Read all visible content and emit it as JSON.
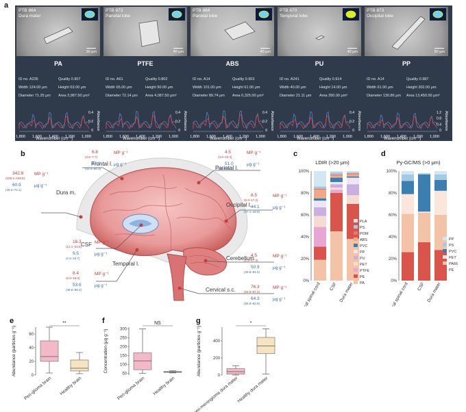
{
  "panels": {
    "a": "a",
    "b": "b",
    "c": "c",
    "d": "d",
    "e": "e",
    "f": "f",
    "g": "g"
  },
  "panel_a": {
    "tiles": [
      {
        "header": "PTB 864",
        "tissue": "Dura mater",
        "scale": "30 μm",
        "polymer": "PA",
        "id": "ID no. A235",
        "quality": "Quality 0.907",
        "width": "Width 124.00 μm",
        "height": "Height 63.00 μm",
        "diameter": "Diameter 71.25 μm",
        "area": "Area 3,987.50 μm²"
      },
      {
        "header": "PTB 873",
        "tissue": "Parietal lobe",
        "scale": "40 μm",
        "polymer": "PTFE",
        "id": "ID no. A61",
        "quality": "Quality 0.802",
        "width": "Width 65.00 μm",
        "height": "Height 90.00 μm",
        "diameter": "Diameter 72.14 μm",
        "area": "Area 4,087.50 μm²"
      },
      {
        "header": "PTB 864",
        "tissue": "Parietal lobe",
        "scale": "40 μm",
        "polymer": "ABS",
        "id": "ID no. A14",
        "quality": "Quality 0.903",
        "width": "Width 101.00 μm",
        "height": "Height 61.00 μm",
        "diameter": "Diameter 89.74 μm",
        "area": "Area 6,325.00 μm²"
      },
      {
        "header": "PTB 870",
        "tissue": "Temporal lobe",
        "scale": "40 μm",
        "polymer": "PU",
        "id": "ID no. A241",
        "quality": "Quality 0.914",
        "width": "Width 40.00 μm",
        "height": "Height 14.00 μm",
        "diameter": "Diameter 21.11 μm",
        "area": "Area 350.00 μm²"
      },
      {
        "header": "PTB 873",
        "tissue": "Occipital lobe",
        "scale": "50 μm",
        "polymer": "PP",
        "id": "ID no. A14",
        "quality": "Quality 0.987",
        "width": "Width 61.00 μm",
        "height": "Height 302.00 μm",
        "diameter": "Diameter 130.86 μm",
        "area": "Area 13,450.00 μm²"
      }
    ],
    "spectrum_axis_title": "Wavenumber (cm⁻¹)",
    "spectrum_ylabel": "Absorbance",
    "spectrum_ticks": [
      "1,800",
      "1,600",
      "1,400",
      "1,200",
      "1,000"
    ],
    "spectrum_yticks_a": [
      "0.4",
      "0.2",
      "0"
    ],
    "spectrum_yticks_b": [
      "1.2",
      "0.8",
      "0.4",
      "0"
    ],
    "colors": {
      "measured": "#e0474c",
      "reference": "#4f86c6"
    }
  },
  "panel_b": {
    "unit_mp": "MP g⁻¹",
    "unit_ug": "μg g⁻¹",
    "regions": [
      {
        "name": "Frontal l.",
        "mp": "6.8",
        "mp_range": "(4.8–7.7)",
        "ug": "47.9",
        "ug_range": "(43.4–50.3)"
      },
      {
        "name": "Parietal l.",
        "mp": "4.5",
        "mp_range": "(3.6–23.3)",
        "ug": "51.0",
        "ug_range": "(50.6–58.2)"
      },
      {
        "name": "Dura m.",
        "mp": "342.8",
        "mp_range": "(228.1–449.5)",
        "ug": "60.9",
        "ug_range": "(49.2–72.1)"
      },
      {
        "name": "Occipital l.",
        "mp": "8.5",
        "mp_range": "(6.3–17.2)",
        "ug": "44.1",
        "ug_range": "(37.1–45.9)"
      },
      {
        "name": "CSF",
        "mp": "16.3",
        "mp_range": "(12.1–33.5)",
        "ug": "9.5",
        "ug_range": "(2.4–16.7)"
      },
      {
        "name": "Cerebellum",
        "mp": "4.5",
        "mp_range": "(2.3–17.3)",
        "ug": "50.9",
        "ug_range": "(49.8–51.5)"
      },
      {
        "name": "Temporal l.",
        "mp": "8.4",
        "mp_range": "(6.8–16.0)",
        "ug": "53.6",
        "ug_range": "(48.6–58.2)"
      },
      {
        "name": "Cervical s.c.",
        "mp": "76.3",
        "mp_range": "(54.5–87.3)",
        "ug": "64.3",
        "ug_range": "(55.8–82.8)"
      }
    ]
  },
  "chart_data": [
    {
      "id": "c",
      "type": "bar",
      "stacked": true,
      "title": "LDIR (>20 μm)",
      "categories": [
        "Brain + cervical spinal cord",
        "CSF",
        "Dura mater"
      ],
      "yticks": [
        "0%",
        "20%",
        "40%",
        "60%",
        "80%",
        "100%"
      ],
      "ylim": [
        0,
        100
      ],
      "series": [
        {
          "name": "PA",
          "color": "#f3c3a8",
          "values": [
            19,
            45,
            38
          ]
        },
        {
          "name": "PE",
          "color": "#d9544b",
          "values": [
            12,
            35,
            32
          ]
        },
        {
          "name": "PTFE",
          "color": "#e7a6d4",
          "values": [
            18,
            3,
            0
          ]
        },
        {
          "name": "PET",
          "color": "#f5dcd0",
          "values": [
            10,
            2,
            8
          ]
        },
        {
          "name": "PU",
          "color": "#c9b0e0",
          "values": [
            8,
            3,
            10
          ]
        },
        {
          "name": "PP",
          "color": "#ece6f5",
          "values": [
            6,
            2,
            6
          ]
        },
        {
          "name": "PVC",
          "color": "#3b7fb0",
          "values": [
            2,
            4,
            1
          ]
        },
        {
          "name": "ABS",
          "color": "#f0a888",
          "values": [
            8,
            2,
            2
          ]
        },
        {
          "name": "POM",
          "color": "#e27b63",
          "values": [
            1,
            1,
            1
          ]
        },
        {
          "name": "PS",
          "color": "#a4c9e2",
          "values": [
            2,
            2,
            1
          ]
        },
        {
          "name": "PLA",
          "color": "#d3e7f2",
          "values": [
            14,
            1,
            1
          ]
        }
      ]
    },
    {
      "id": "d",
      "type": "bar",
      "stacked": true,
      "title": "Py-GC/MS (>0 μm)",
      "categories": [
        "Brain + cervical spinal cord",
        "CSF",
        "Dura mater"
      ],
      "yticks": [
        "0%",
        "20%",
        "40%",
        "60%",
        "80%",
        "100%"
      ],
      "ylim": [
        0,
        100
      ],
      "series": [
        {
          "name": "PE",
          "color": "#d9544b",
          "values": [
            26,
            35,
            28
          ]
        },
        {
          "name": "PA66",
          "color": "#f3c3a8",
          "values": [
            35,
            27,
            32
          ]
        },
        {
          "name": "PET",
          "color": "#fbe6dc",
          "values": [
            18,
            1,
            22
          ]
        },
        {
          "name": "PVC",
          "color": "#3b7fb0",
          "values": [
            12,
            34,
            10
          ]
        },
        {
          "name": "PS",
          "color": "#a4c9e2",
          "values": [
            6,
            1,
            5
          ]
        },
        {
          "name": "PP",
          "color": "#d3e7f2",
          "values": [
            3,
            0,
            3
          ]
        }
      ]
    },
    {
      "id": "e",
      "type": "box",
      "ylabel": "Abundance (particles g⁻¹)",
      "categories": [
        "Peri-glioma brain",
        "Healthy brain"
      ],
      "yticks": [
        "0",
        "20",
        "40",
        "60"
      ],
      "ylim": [
        0,
        70
      ],
      "significance": "**",
      "boxes": [
        {
          "min": 3,
          "q1": 20,
          "median": 27,
          "q3": 50,
          "max": 70,
          "color": "#f3b9c8"
        },
        {
          "min": 2,
          "q1": 6,
          "median": 10,
          "q3": 22,
          "max": 33,
          "color": "#f6e3c2"
        }
      ]
    },
    {
      "id": "f",
      "type": "box",
      "ylabel": "Concentration (μg g⁻¹)",
      "categories": [
        "Peri-glioma brain",
        "Healthy brain"
      ],
      "yticks": [
        "50",
        "100",
        "150",
        "200",
        "250",
        "300"
      ],
      "ylim": [
        40,
        310
      ],
      "significance": "NS",
      "boxes": [
        {
          "min": 50,
          "q1": 70,
          "median": 120,
          "q3": 165,
          "max": 300,
          "color": "#f3b9c8"
        },
        {
          "min": 52,
          "q1": 55,
          "median": 57,
          "q3": 60,
          "max": 64,
          "color": "#f6e3c2"
        }
      ]
    },
    {
      "id": "g",
      "type": "box",
      "ylabel": "Abundance (particles g⁻¹)",
      "categories": [
        "Peri-meningioma dura mater",
        "Healthy dura mater"
      ],
      "yticks": [
        "0",
        "200",
        "400"
      ],
      "ylim": [
        0,
        560
      ],
      "significance": "*",
      "boxes": [
        {
          "min": 0,
          "q1": 10,
          "median": 40,
          "q3": 75,
          "max": 110,
          "color": "#f3b9c8"
        },
        {
          "min": 10,
          "q1": 250,
          "median": 340,
          "q3": 440,
          "max": 540,
          "color": "#f6e3c2"
        }
      ]
    }
  ]
}
